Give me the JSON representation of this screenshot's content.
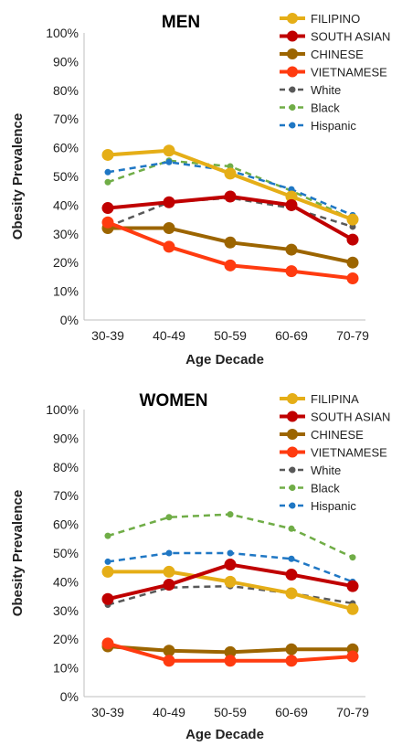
{
  "chart_data": [
    {
      "type": "line",
      "title": "MEN",
      "xlabel": "Age Decade",
      "ylabel": "Obesity Prevalence",
      "ylim": [
        0,
        100
      ],
      "yticks": [
        "0%",
        "10%",
        "20%",
        "30%",
        "40%",
        "50%",
        "60%",
        "70%",
        "80%",
        "90%",
        "100%"
      ],
      "categories": [
        "30-39",
        "40-49",
        "50-59",
        "60-69",
        "70-79"
      ],
      "grid": false,
      "legend": "top-right",
      "series": [
        {
          "name": "FILIPINO",
          "color": "#E5AE17",
          "style": "solid",
          "values": [
            57.5,
            59,
            51,
            43,
            35
          ]
        },
        {
          "name": "SOUTH ASIAN",
          "color": "#C00000",
          "style": "solid",
          "values": [
            39,
            41,
            43,
            40,
            28
          ]
        },
        {
          "name": "CHINESE",
          "color": "#9C6500",
          "style": "solid",
          "values": [
            32,
            32,
            27,
            24.5,
            20
          ]
        },
        {
          "name": "VIETNAMESE",
          "color": "#FF3B10",
          "style": "solid",
          "values": [
            34,
            25.5,
            19,
            17,
            14.5
          ]
        },
        {
          "name": "White",
          "color": "#595959",
          "style": "dashed",
          "values": [
            32.5,
            41,
            42.5,
            39,
            32.5
          ]
        },
        {
          "name": "Black",
          "color": "#70AD47",
          "style": "dashed",
          "values": [
            48,
            55.5,
            53.5,
            45,
            35
          ]
        },
        {
          "name": "Hispanic",
          "color": "#1F77C4",
          "style": "dashed",
          "values": [
            51.5,
            55,
            52,
            45.5,
            36.5
          ]
        }
      ]
    },
    {
      "type": "line",
      "title": "WOMEN",
      "xlabel": "Age Decade",
      "ylabel": "Obesity Prevalence",
      "ylim": [
        0,
        100
      ],
      "yticks": [
        "0%",
        "10%",
        "20%",
        "30%",
        "40%",
        "50%",
        "60%",
        "70%",
        "80%",
        "90%",
        "100%"
      ],
      "categories": [
        "30-39",
        "40-49",
        "50-59",
        "60-69",
        "70-79"
      ],
      "grid": false,
      "legend": "top-right",
      "series": [
        {
          "name": "FILIPINA",
          "color": "#E5AE17",
          "style": "solid",
          "values": [
            43.5,
            43.5,
            40,
            36,
            30.5
          ]
        },
        {
          "name": "SOUTH ASIAN",
          "color": "#C00000",
          "style": "solid",
          "values": [
            34,
            39,
            46,
            42.5,
            38.5
          ]
        },
        {
          "name": "CHINESE",
          "color": "#9C6500",
          "style": "solid",
          "values": [
            17.5,
            16,
            15.5,
            16.5,
            16.5
          ]
        },
        {
          "name": "VIETNAMESE",
          "color": "#FF3B10",
          "style": "solid",
          "values": [
            18.5,
            12.5,
            12.5,
            12.5,
            14
          ]
        },
        {
          "name": "White",
          "color": "#595959",
          "style": "dashed",
          "values": [
            32,
            38,
            38.5,
            36,
            32.5
          ]
        },
        {
          "name": "Black",
          "color": "#70AD47",
          "style": "dashed",
          "values": [
            56,
            62.5,
            63.5,
            58.5,
            48.5
          ]
        },
        {
          "name": "Hispanic",
          "color": "#1F77C4",
          "style": "dashed",
          "values": [
            47,
            50,
            50,
            48,
            40
          ]
        }
      ]
    }
  ]
}
